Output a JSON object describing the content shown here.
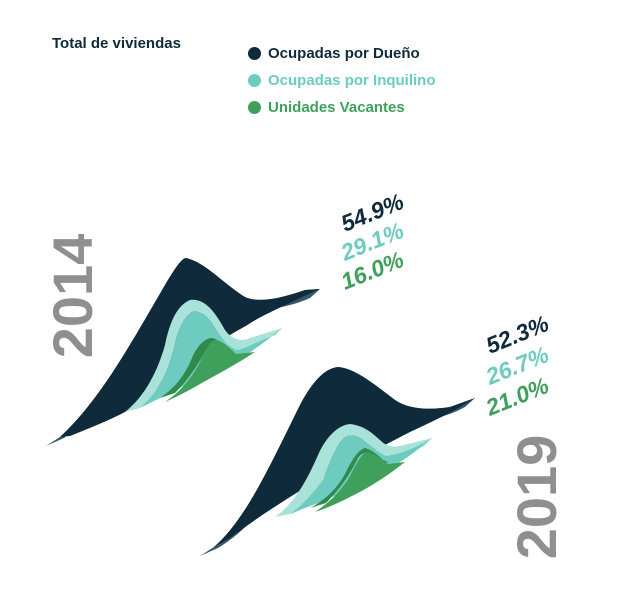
{
  "title": "Total de viviendas",
  "colors": {
    "owner": "#0f2a3a",
    "owner_side": "#355868",
    "renter": "#6ecbbf",
    "renter_side": "#a9e2d9",
    "vacant": "#3fa05c",
    "vacant_side": "#2f8a4c",
    "year": "#8f8f8f"
  },
  "chart_data": {
    "type": "area",
    "title": "Total de viviendas",
    "series": [
      {
        "name": "Ocupadas por Dueño",
        "key": "owner"
      },
      {
        "name": "Ocupadas por Inquilino",
        "key": "renter"
      },
      {
        "name": "Unidades Vacantes",
        "key": "vacant"
      }
    ],
    "categories": [
      "2014",
      "2019"
    ],
    "values": {
      "2014": {
        "owner": 54.9,
        "renter": 29.1,
        "vacant": 16.0
      },
      "2019": {
        "owner": 52.3,
        "renter": 26.7,
        "vacant": 21.0
      }
    },
    "labels": {
      "2014": [
        "54.9%",
        "29.1%",
        "16.0%"
      ],
      "2019": [
        "52.3%",
        "26.7%",
        "21.0%"
      ]
    }
  }
}
